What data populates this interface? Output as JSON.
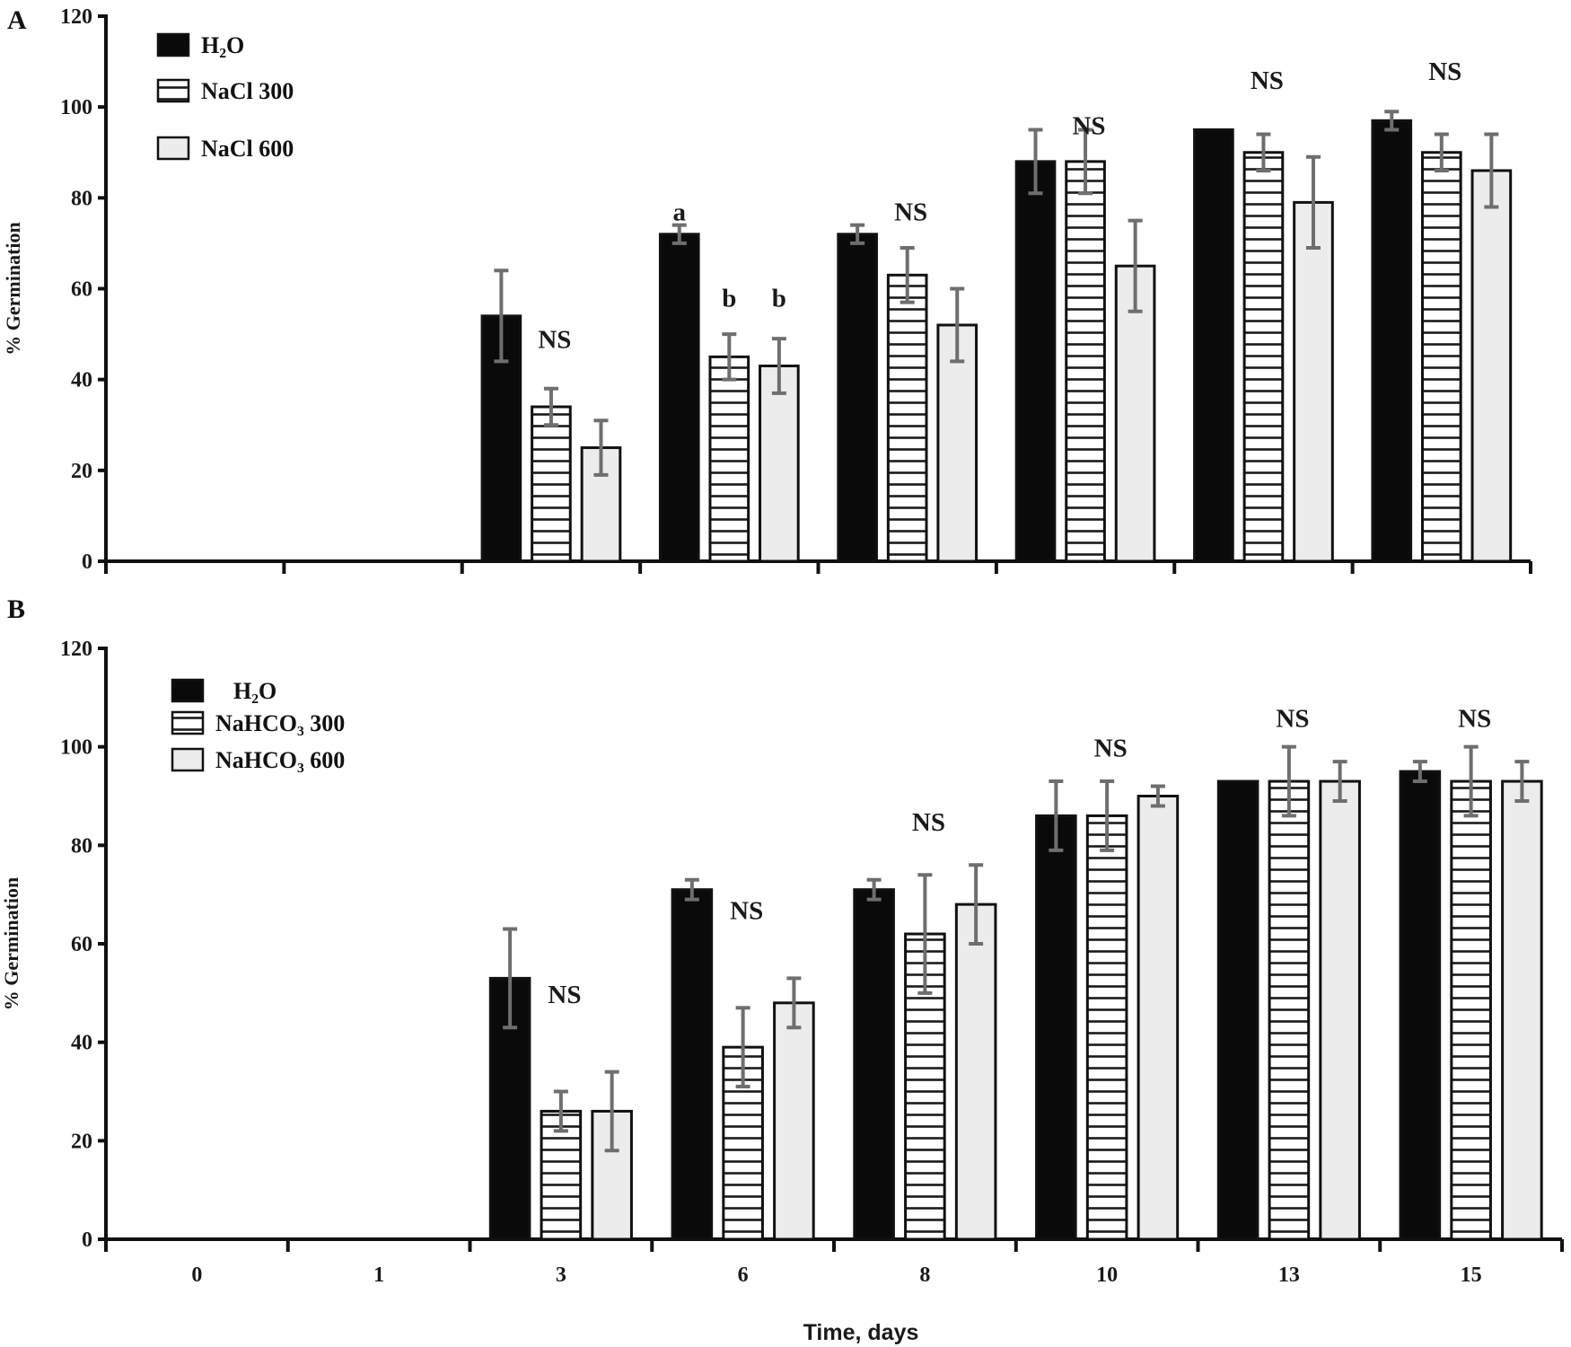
{
  "chart_data": [
    {
      "panel": "A",
      "type": "bar",
      "categories": [
        "0",
        "1",
        "3",
        "6",
        "8",
        "10",
        "13",
        "15"
      ],
      "show_category_labels": false,
      "ylabel": "% Germination",
      "xlabel": "",
      "ylim": [
        0,
        120
      ],
      "yticks": [
        0,
        20,
        40,
        60,
        80,
        100,
        120
      ],
      "legend_placement": "top-left",
      "series": [
        {
          "name": "H₂O",
          "fill": "solid-black",
          "values": [
            0,
            0,
            54,
            72,
            72,
            88,
            95,
            97
          ],
          "errors": [
            0,
            0,
            10,
            2,
            2,
            7,
            0,
            2
          ]
        },
        {
          "name": "NaCl 300",
          "fill": "horizontal-stripes",
          "values": [
            0,
            0,
            34,
            45,
            63,
            88,
            90,
            90
          ],
          "errors": [
            0,
            0,
            4,
            5,
            6,
            7,
            4,
            4
          ]
        },
        {
          "name": "NaCl 600",
          "fill": "light-gray",
          "values": [
            0,
            0,
            25,
            43,
            52,
            65,
            79,
            86
          ],
          "errors": [
            0,
            0,
            6,
            6,
            8,
            10,
            10,
            8
          ]
        }
      ],
      "annotations": [
        {
          "text": "NS",
          "category": "3",
          "y": 47
        },
        {
          "text": "a",
          "category": "6",
          "series": 0,
          "y": 75
        },
        {
          "text": "b",
          "category": "6",
          "series": 1,
          "y": 56
        },
        {
          "text": "b",
          "category": "6",
          "series": 2,
          "y": 56
        },
        {
          "text": "NS",
          "category": "8",
          "y": 75
        },
        {
          "text": "NS",
          "category": "10",
          "y": 94
        },
        {
          "text": "NS",
          "category": "13",
          "y": 104
        },
        {
          "text": "NS",
          "category": "15",
          "y": 106
        }
      ]
    },
    {
      "panel": "B",
      "type": "bar",
      "categories": [
        "0",
        "1",
        "3",
        "6",
        "8",
        "10",
        "13",
        "15"
      ],
      "show_category_labels": true,
      "ylabel": "% Germination",
      "xlabel": "Time, days",
      "ylim": [
        0,
        120
      ],
      "yticks": [
        0,
        20,
        40,
        60,
        80,
        100,
        120
      ],
      "legend_placement": "top-left",
      "series": [
        {
          "name": "H₂O",
          "fill": "solid-black",
          "values": [
            0,
            0,
            53,
            71,
            71,
            86,
            93,
            95
          ],
          "errors": [
            0,
            0,
            10,
            2,
            2,
            7,
            0,
            2
          ]
        },
        {
          "name": "NaHCO₃ 300",
          "fill": "horizontal-stripes",
          "values": [
            0,
            0,
            26,
            39,
            62,
            86,
            93,
            93
          ],
          "errors": [
            0,
            0,
            4,
            8,
            12,
            7,
            7,
            7
          ]
        },
        {
          "name": "NaHCO₃ 600",
          "fill": "light-gray",
          "values": [
            0,
            0,
            26,
            48,
            68,
            90,
            93,
            93
          ],
          "errors": [
            0,
            0,
            8,
            5,
            8,
            2,
            4,
            4
          ]
        }
      ],
      "annotations": [
        {
          "text": "NS",
          "category": "3",
          "y": 48
        },
        {
          "text": "NS",
          "category": "6",
          "y": 65
        },
        {
          "text": "NS",
          "category": "8",
          "y": 83
        },
        {
          "text": "NS",
          "category": "10",
          "y": 98
        },
        {
          "text": "NS",
          "category": "13",
          "y": 104
        },
        {
          "text": "NS",
          "category": "15",
          "y": 104
        }
      ]
    }
  ],
  "panels": {
    "a": {
      "letter": "A"
    },
    "b": {
      "letter": "B"
    }
  },
  "colors": {
    "axis": "#111111",
    "bar_dark": "#0a0a0a",
    "bar_light": "#ececec",
    "stripe": "#1a1a1a",
    "error_bar": "#6e6e6e"
  }
}
